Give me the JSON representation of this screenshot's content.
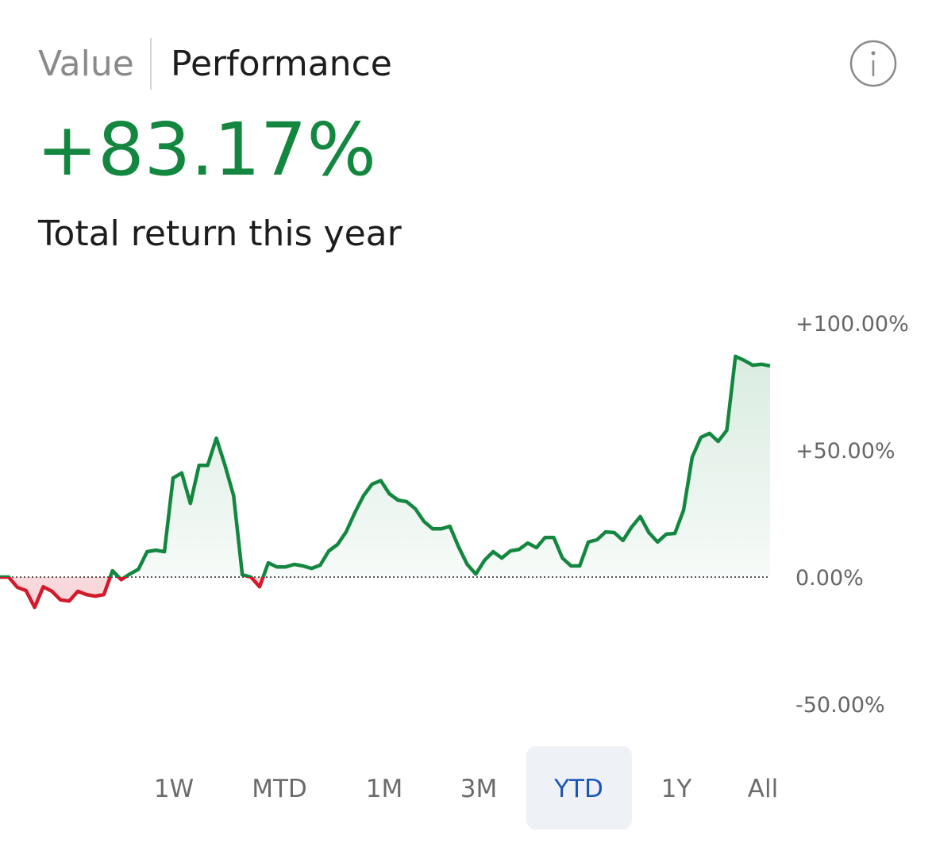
{
  "tabs": [
    "Value",
    "Performance"
  ],
  "headline": "+83.17%",
  "subtitle": "Total return this year",
  "ranges": [
    "1W",
    "MTD",
    "1M",
    "3M",
    "YTD",
    "1Y",
    "All"
  ],
  "selected_range": 4,
  "chart_data": {
    "type": "line",
    "values": [
      0,
      0,
      -4,
      -5.3,
      -11.9,
      -3.8,
      -5.6,
      -9,
      -9.4,
      -5.6,
      -6.9,
      -7.5,
      -6.9,
      2.5,
      -1,
      1.2,
      3.1,
      10,
      10.6,
      10,
      39,
      41,
      29,
      44,
      44,
      54.7,
      44,
      32,
      0.9,
      0,
      -3.8,
      5.6,
      4,
      4,
      5,
      4.4,
      3.4,
      4.7,
      10.3,
      12.8,
      17.8,
      25.3,
      32,
      36.6,
      38,
      32.8,
      30.3,
      29.7,
      26.9,
      21.9,
      19,
      19,
      20,
      11.9,
      5,
      1.2,
      6.6,
      10,
      7.5,
      10.3,
      10.9,
      13.4,
      11.6,
      15.6,
      15.6,
      7.5,
      4.4,
      4.4,
      13.8,
      14.7,
      17.8,
      17.5,
      14.4,
      19.7,
      23.8,
      17.5,
      13.8,
      16.9,
      17.2,
      26.3,
      47.2,
      55,
      56.6,
      53.4,
      57.8,
      86.9,
      85.3,
      83.4,
      83.8,
      83.17
    ],
    "positive_color": "#13873f",
    "negative_color": "#d21a2c",
    "ylim": [
      -50,
      100
    ],
    "yticks": [
      {
        "value": 100,
        "label": "+100.00%"
      },
      {
        "value": 50,
        "label": "+50.00%"
      },
      {
        "value": 0,
        "label": "0.00%"
      },
      {
        "value": -50,
        "label": "-50.00%"
      }
    ]
  }
}
